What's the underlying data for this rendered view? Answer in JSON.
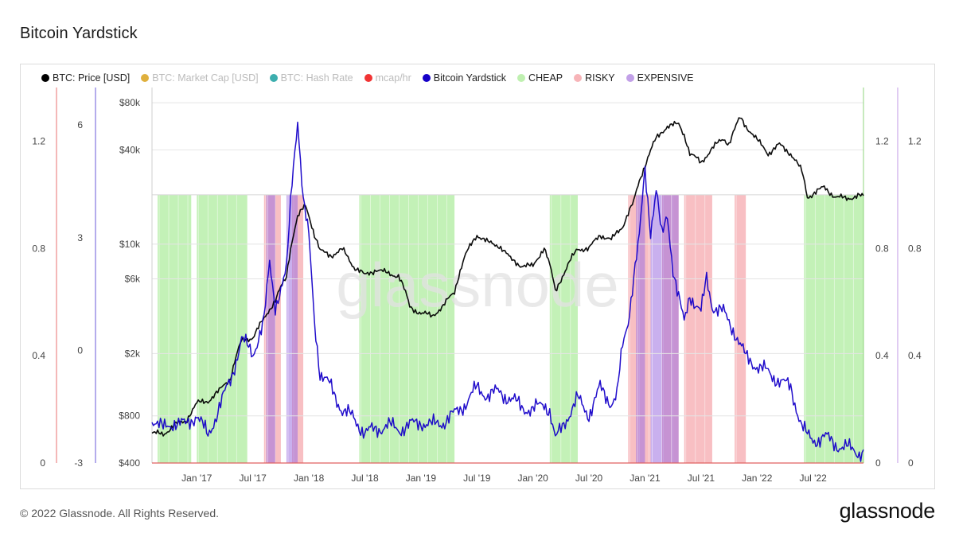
{
  "title": "Bitcoin Yardstick",
  "footer": {
    "copyright": "© 2022 Glassnode. All Rights Reserved.",
    "logo_text": "glassnode"
  },
  "watermark": "glassnode",
  "legend": [
    {
      "label": "BTC: Price [USD]",
      "color": "#000000",
      "muted": false
    },
    {
      "label": "BTC: Market Cap [USD]",
      "color": "#d9a21b",
      "muted": true
    },
    {
      "label": "BTC: Hash Rate",
      "color": "#1aa0a0",
      "muted": true
    },
    {
      "label": "mcap/hr",
      "color": "#ee1111",
      "muted": true
    },
    {
      "label": "Bitcoin Yardstick",
      "color": "#1500c8",
      "muted": false
    },
    {
      "label": "CHEAP",
      "color": "#bff0b0",
      "muted": false
    },
    {
      "label": "RISKY",
      "color": "#f7b4b8",
      "muted": false
    },
    {
      "label": "EXPENSIVE",
      "color": "#c2a0e8",
      "muted": false
    }
  ],
  "chart_data": {
    "type": "line",
    "x_ticks": [
      "Jan '17",
      "Jul '17",
      "Jan '18",
      "Jul '18",
      "Jan '19",
      "Jul '19",
      "Jan '20",
      "Jul '20",
      "Jan '21",
      "Jul '21",
      "Jan '22",
      "Jul '22"
    ],
    "x_range": [
      2016.6,
      2022.95
    ],
    "axes": {
      "price": {
        "scale": "log",
        "range": [
          400,
          100000
        ],
        "ticks": [
          "$400",
          "$800",
          "$2k",
          "$6k",
          "$10k",
          "$40k",
          "$80k"
        ],
        "tick_values": [
          400,
          800,
          2000,
          6000,
          10000,
          40000,
          80000
        ]
      },
      "red_left": {
        "range": [
          0,
          1.4
        ],
        "ticks": [
          "0",
          "0.4",
          "0.8",
          "1.2"
        ],
        "tick_values": [
          0,
          0.4,
          0.8,
          1.2
        ]
      },
      "yardstick_left": {
        "range": [
          -3,
          7
        ],
        "ticks": [
          "-3",
          "0",
          "3",
          "6"
        ],
        "tick_values": [
          -3,
          0,
          3,
          6
        ]
      },
      "right_inner": {
        "range": [
          0,
          1.4
        ],
        "ticks": [
          "0",
          "0.4",
          "0.8",
          "1.2"
        ],
        "tick_values": [
          0,
          0.4,
          0.8,
          1.2
        ]
      },
      "right_outer": {
        "range": [
          0,
          1.4
        ],
        "ticks": [
          "0",
          "0.4",
          "0.8",
          "1.2"
        ],
        "tick_values": [
          0,
          0.4,
          0.8,
          1.2
        ]
      }
    },
    "zone_level": 1.0,
    "zones": {
      "cheap": [
        [
          2016.65,
          2016.95
        ],
        [
          2017.0,
          2017.45
        ],
        [
          2018.45,
          2019.3
        ],
        [
          2020.15,
          2020.4
        ],
        [
          2022.42,
          2022.95
        ]
      ],
      "risky": [
        [
          2017.6,
          2017.75
        ],
        [
          2017.85,
          2017.95
        ],
        [
          2020.85,
          2021.05
        ],
        [
          2021.15,
          2021.3
        ],
        [
          2021.35,
          2021.6
        ],
        [
          2021.8,
          2021.9
        ]
      ],
      "expensive": [
        [
          2017.62,
          2017.7
        ],
        [
          2017.8,
          2017.9
        ],
        [
          2020.92,
          2021.0
        ],
        [
          2021.05,
          2021.3
        ]
      ]
    },
    "series": [
      {
        "name": "BTC: Price [USD]",
        "axis": "price",
        "color": "#000000",
        "points": [
          [
            2016.6,
            620
          ],
          [
            2016.7,
            610
          ],
          [
            2016.8,
            700
          ],
          [
            2016.9,
            740
          ],
          [
            2017.0,
            960
          ],
          [
            2017.1,
            1000
          ],
          [
            2017.2,
            1150
          ],
          [
            2017.3,
            1400
          ],
          [
            2017.4,
            2400
          ],
          [
            2017.5,
            2550
          ],
          [
            2017.6,
            3300
          ],
          [
            2017.7,
            4400
          ],
          [
            2017.8,
            6100
          ],
          [
            2017.9,
            15000
          ],
          [
            2017.97,
            17500
          ],
          [
            2018.05,
            11500
          ],
          [
            2018.1,
            9000
          ],
          [
            2018.2,
            8500
          ],
          [
            2018.3,
            9200
          ],
          [
            2018.4,
            7200
          ],
          [
            2018.5,
            6300
          ],
          [
            2018.6,
            6900
          ],
          [
            2018.7,
            6500
          ],
          [
            2018.8,
            6300
          ],
          [
            2018.9,
            4000
          ],
          [
            2019.0,
            3600
          ],
          [
            2019.1,
            3500
          ],
          [
            2019.2,
            4000
          ],
          [
            2019.3,
            5000
          ],
          [
            2019.4,
            8500
          ],
          [
            2019.5,
            11500
          ],
          [
            2019.6,
            10200
          ],
          [
            2019.7,
            9800
          ],
          [
            2019.8,
            8000
          ],
          [
            2019.9,
            7300
          ],
          [
            2020.0,
            7200
          ],
          [
            2020.1,
            9500
          ],
          [
            2020.2,
            5000
          ],
          [
            2020.3,
            7000
          ],
          [
            2020.4,
            9400
          ],
          [
            2020.5,
            9300
          ],
          [
            2020.6,
            11500
          ],
          [
            2020.7,
            10600
          ],
          [
            2020.8,
            13000
          ],
          [
            2020.9,
            18500
          ],
          [
            2021.0,
            32000
          ],
          [
            2021.1,
            47000
          ],
          [
            2021.2,
            57000
          ],
          [
            2021.3,
            58000
          ],
          [
            2021.35,
            50000
          ],
          [
            2021.4,
            38000
          ],
          [
            2021.5,
            33000
          ],
          [
            2021.6,
            41000
          ],
          [
            2021.7,
            47000
          ],
          [
            2021.75,
            44000
          ],
          [
            2021.85,
            64000
          ],
          [
            2021.9,
            57000
          ],
          [
            2022.0,
            46000
          ],
          [
            2022.1,
            38000
          ],
          [
            2022.2,
            43000
          ],
          [
            2022.3,
            38000
          ],
          [
            2022.4,
            29000
          ],
          [
            2022.45,
            20000
          ],
          [
            2022.6,
            23000
          ],
          [
            2022.7,
            20000
          ],
          [
            2022.8,
            19500
          ],
          [
            2022.9,
            20500
          ],
          [
            2022.95,
            20000
          ]
        ]
      },
      {
        "name": "Bitcoin Yardstick",
        "axis": "yardstick_left",
        "color": "#1500c8",
        "points": [
          [
            2016.6,
            -1.8
          ],
          [
            2016.7,
            -2.1
          ],
          [
            2016.8,
            -1.9
          ],
          [
            2016.9,
            -2.0
          ],
          [
            2017.0,
            -1.7
          ],
          [
            2017.1,
            -2.3
          ],
          [
            2017.2,
            -1.5
          ],
          [
            2017.3,
            -0.8
          ],
          [
            2017.4,
            0.3
          ],
          [
            2017.5,
            -0.1
          ],
          [
            2017.6,
            0.8
          ],
          [
            2017.65,
            2.3
          ],
          [
            2017.7,
            1.2
          ],
          [
            2017.8,
            2.1
          ],
          [
            2017.85,
            4.5
          ],
          [
            2017.9,
            6.2
          ],
          [
            2017.95,
            4.0
          ],
          [
            2018.0,
            3.0
          ],
          [
            2018.05,
            0.8
          ],
          [
            2018.1,
            -0.6
          ],
          [
            2018.2,
            -1.0
          ],
          [
            2018.3,
            -1.6
          ],
          [
            2018.4,
            -1.8
          ],
          [
            2018.5,
            -2.2
          ],
          [
            2018.6,
            -2.1
          ],
          [
            2018.7,
            -2.0
          ],
          [
            2018.8,
            -2.1
          ],
          [
            2018.9,
            -2.0
          ],
          [
            2019.0,
            -1.9
          ],
          [
            2019.1,
            -2.0
          ],
          [
            2019.2,
            -1.9
          ],
          [
            2019.3,
            -1.7
          ],
          [
            2019.4,
            -1.4
          ],
          [
            2019.5,
            -1.0
          ],
          [
            2019.6,
            -1.2
          ],
          [
            2019.7,
            -1.1
          ],
          [
            2019.8,
            -1.3
          ],
          [
            2019.9,
            -1.5
          ],
          [
            2020.0,
            -1.6
          ],
          [
            2020.1,
            -1.4
          ],
          [
            2020.15,
            -1.6
          ],
          [
            2020.2,
            -2.4
          ],
          [
            2020.3,
            -1.8
          ],
          [
            2020.4,
            -1.3
          ],
          [
            2020.5,
            -1.7
          ],
          [
            2020.6,
            -1.0
          ],
          [
            2020.7,
            -1.4
          ],
          [
            2020.75,
            -1.2
          ],
          [
            2020.8,
            0.1
          ],
          [
            2020.85,
            0.8
          ],
          [
            2020.9,
            2.0
          ],
          [
            2020.95,
            3.0
          ],
          [
            2021.0,
            4.8
          ],
          [
            2021.05,
            3.2
          ],
          [
            2021.1,
            4.3
          ],
          [
            2021.15,
            3.0
          ],
          [
            2021.2,
            3.6
          ],
          [
            2021.25,
            2.2
          ],
          [
            2021.3,
            1.4
          ],
          [
            2021.35,
            0.7
          ],
          [
            2021.4,
            1.5
          ],
          [
            2021.5,
            1.0
          ],
          [
            2021.55,
            1.9
          ],
          [
            2021.6,
            1.2
          ],
          [
            2021.7,
            1.0
          ],
          [
            2021.8,
            0.5
          ],
          [
            2021.9,
            -0.2
          ],
          [
            2022.0,
            -0.4
          ],
          [
            2022.1,
            -0.6
          ],
          [
            2022.2,
            -0.8
          ],
          [
            2022.3,
            -1.0
          ],
          [
            2022.35,
            -1.5
          ],
          [
            2022.4,
            -2.0
          ],
          [
            2022.45,
            -2.3
          ],
          [
            2022.5,
            -2.4
          ],
          [
            2022.6,
            -2.3
          ],
          [
            2022.7,
            -2.5
          ],
          [
            2022.8,
            -2.6
          ],
          [
            2022.9,
            -2.7
          ],
          [
            2022.95,
            -2.7
          ]
        ]
      }
    ],
    "title": "Bitcoin Yardstick",
    "grid": true
  }
}
